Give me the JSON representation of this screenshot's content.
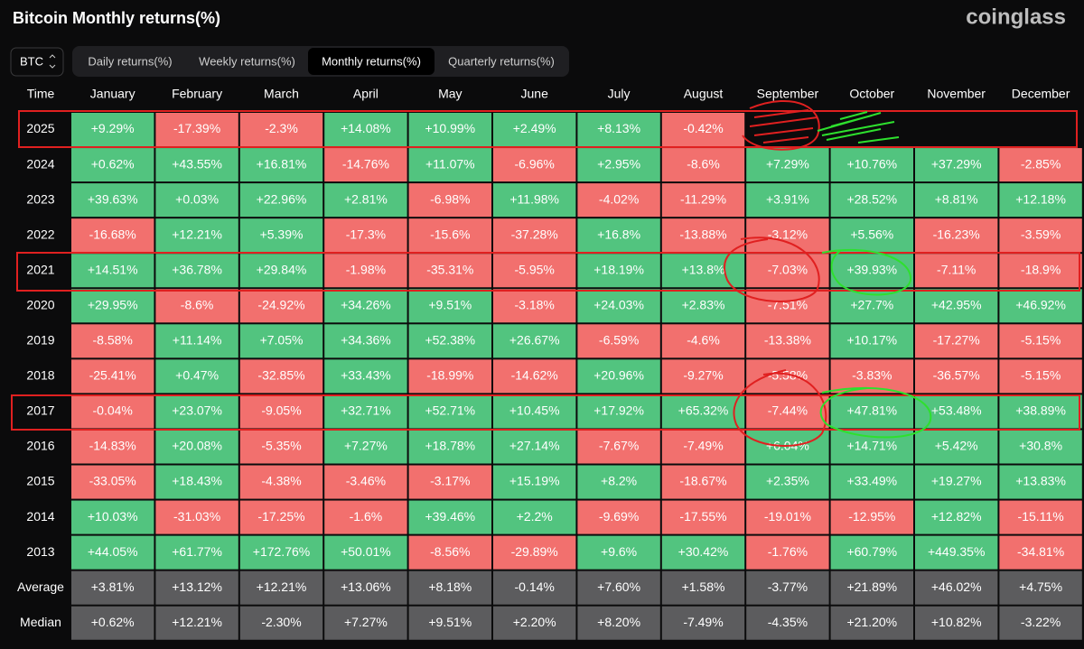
{
  "header": {
    "title": "Bitcoin Monthly returns(%)",
    "brand": "coinglass"
  },
  "controls": {
    "asset": "BTC",
    "tabs": [
      "Daily returns(%)",
      "Weekly returns(%)",
      "Monthly returns(%)",
      "Quarterly returns(%)"
    ],
    "active_tab": 2
  },
  "table": {
    "columns": [
      "Time",
      "January",
      "February",
      "March",
      "April",
      "May",
      "June",
      "July",
      "August",
      "September",
      "October",
      "November",
      "December"
    ],
    "rows": [
      [
        "2025",
        "+9.29%",
        "-17.39%",
        "-2.3%",
        "+14.08%",
        "+10.99%",
        "+2.49%",
        "+8.13%",
        "-0.42%",
        null,
        null,
        null,
        null
      ],
      [
        "2024",
        "+0.62%",
        "+43.55%",
        "+16.81%",
        "-14.76%",
        "+11.07%",
        "-6.96%",
        "+2.95%",
        "-8.6%",
        "+7.29%",
        "+10.76%",
        "+37.29%",
        "-2.85%"
      ],
      [
        "2023",
        "+39.63%",
        "+0.03%",
        "+22.96%",
        "+2.81%",
        "-6.98%",
        "+11.98%",
        "-4.02%",
        "-11.29%",
        "+3.91%",
        "+28.52%",
        "+8.81%",
        "+12.18%"
      ],
      [
        "2022",
        "-16.68%",
        "+12.21%",
        "+5.39%",
        "-17.3%",
        "-15.6%",
        "-37.28%",
        "+16.8%",
        "-13.88%",
        "-3.12%",
        "+5.56%",
        "-16.23%",
        "-3.59%"
      ],
      [
        "2021",
        "+14.51%",
        "+36.78%",
        "+29.84%",
        "-1.98%",
        "-35.31%",
        "-5.95%",
        "+18.19%",
        "+13.8%",
        "-7.03%",
        "+39.93%",
        "-7.11%",
        "-18.9%"
      ],
      [
        "2020",
        "+29.95%",
        "-8.6%",
        "-24.92%",
        "+34.26%",
        "+9.51%",
        "-3.18%",
        "+24.03%",
        "+2.83%",
        "-7.51%",
        "+27.7%",
        "+42.95%",
        "+46.92%"
      ],
      [
        "2019",
        "-8.58%",
        "+11.14%",
        "+7.05%",
        "+34.36%",
        "+52.38%",
        "+26.67%",
        "-6.59%",
        "-4.6%",
        "-13.38%",
        "+10.17%",
        "-17.27%",
        "-5.15%"
      ],
      [
        "2018",
        "-25.41%",
        "+0.47%",
        "-32.85%",
        "+33.43%",
        "-18.99%",
        "-14.62%",
        "+20.96%",
        "-9.27%",
        "-5.58%",
        "-3.83%",
        "-36.57%",
        "-5.15%"
      ],
      [
        "2017",
        "-0.04%",
        "+23.07%",
        "-9.05%",
        "+32.71%",
        "+52.71%",
        "+10.45%",
        "+17.92%",
        "+65.32%",
        "-7.44%",
        "+47.81%",
        "+53.48%",
        "+38.89%"
      ],
      [
        "2016",
        "-14.83%",
        "+20.08%",
        "-5.35%",
        "+7.27%",
        "+18.78%",
        "+27.14%",
        "-7.67%",
        "-7.49%",
        "+6.04%",
        "+14.71%",
        "+5.42%",
        "+30.8%"
      ],
      [
        "2015",
        "-33.05%",
        "+18.43%",
        "-4.38%",
        "-3.46%",
        "-3.17%",
        "+15.19%",
        "+8.2%",
        "-18.67%",
        "+2.35%",
        "+33.49%",
        "+19.27%",
        "+13.83%"
      ],
      [
        "2014",
        "+10.03%",
        "-31.03%",
        "-17.25%",
        "-1.6%",
        "+39.46%",
        "+2.2%",
        "-9.69%",
        "-17.55%",
        "-19.01%",
        "-12.95%",
        "+12.82%",
        "-15.11%"
      ],
      [
        "2013",
        "+44.05%",
        "+61.77%",
        "+172.76%",
        "+50.01%",
        "-8.56%",
        "-29.89%",
        "+9.6%",
        "+30.42%",
        "-1.76%",
        "+60.79%",
        "+449.35%",
        "-34.81%"
      ]
    ],
    "summary_rows": [
      [
        "Average",
        "+3.81%",
        "+13.12%",
        "+12.21%",
        "+13.06%",
        "+8.18%",
        "-0.14%",
        "+7.60%",
        "+1.58%",
        "-3.77%",
        "+21.89%",
        "+46.02%",
        "+4.75%"
      ],
      [
        "Median",
        "+0.62%",
        "+12.21%",
        "-2.30%",
        "+7.27%",
        "+9.51%",
        "+2.20%",
        "+8.20%",
        "-7.49%",
        "-4.35%",
        "+21.20%",
        "+10.82%",
        "-3.22%"
      ]
    ]
  }
}
